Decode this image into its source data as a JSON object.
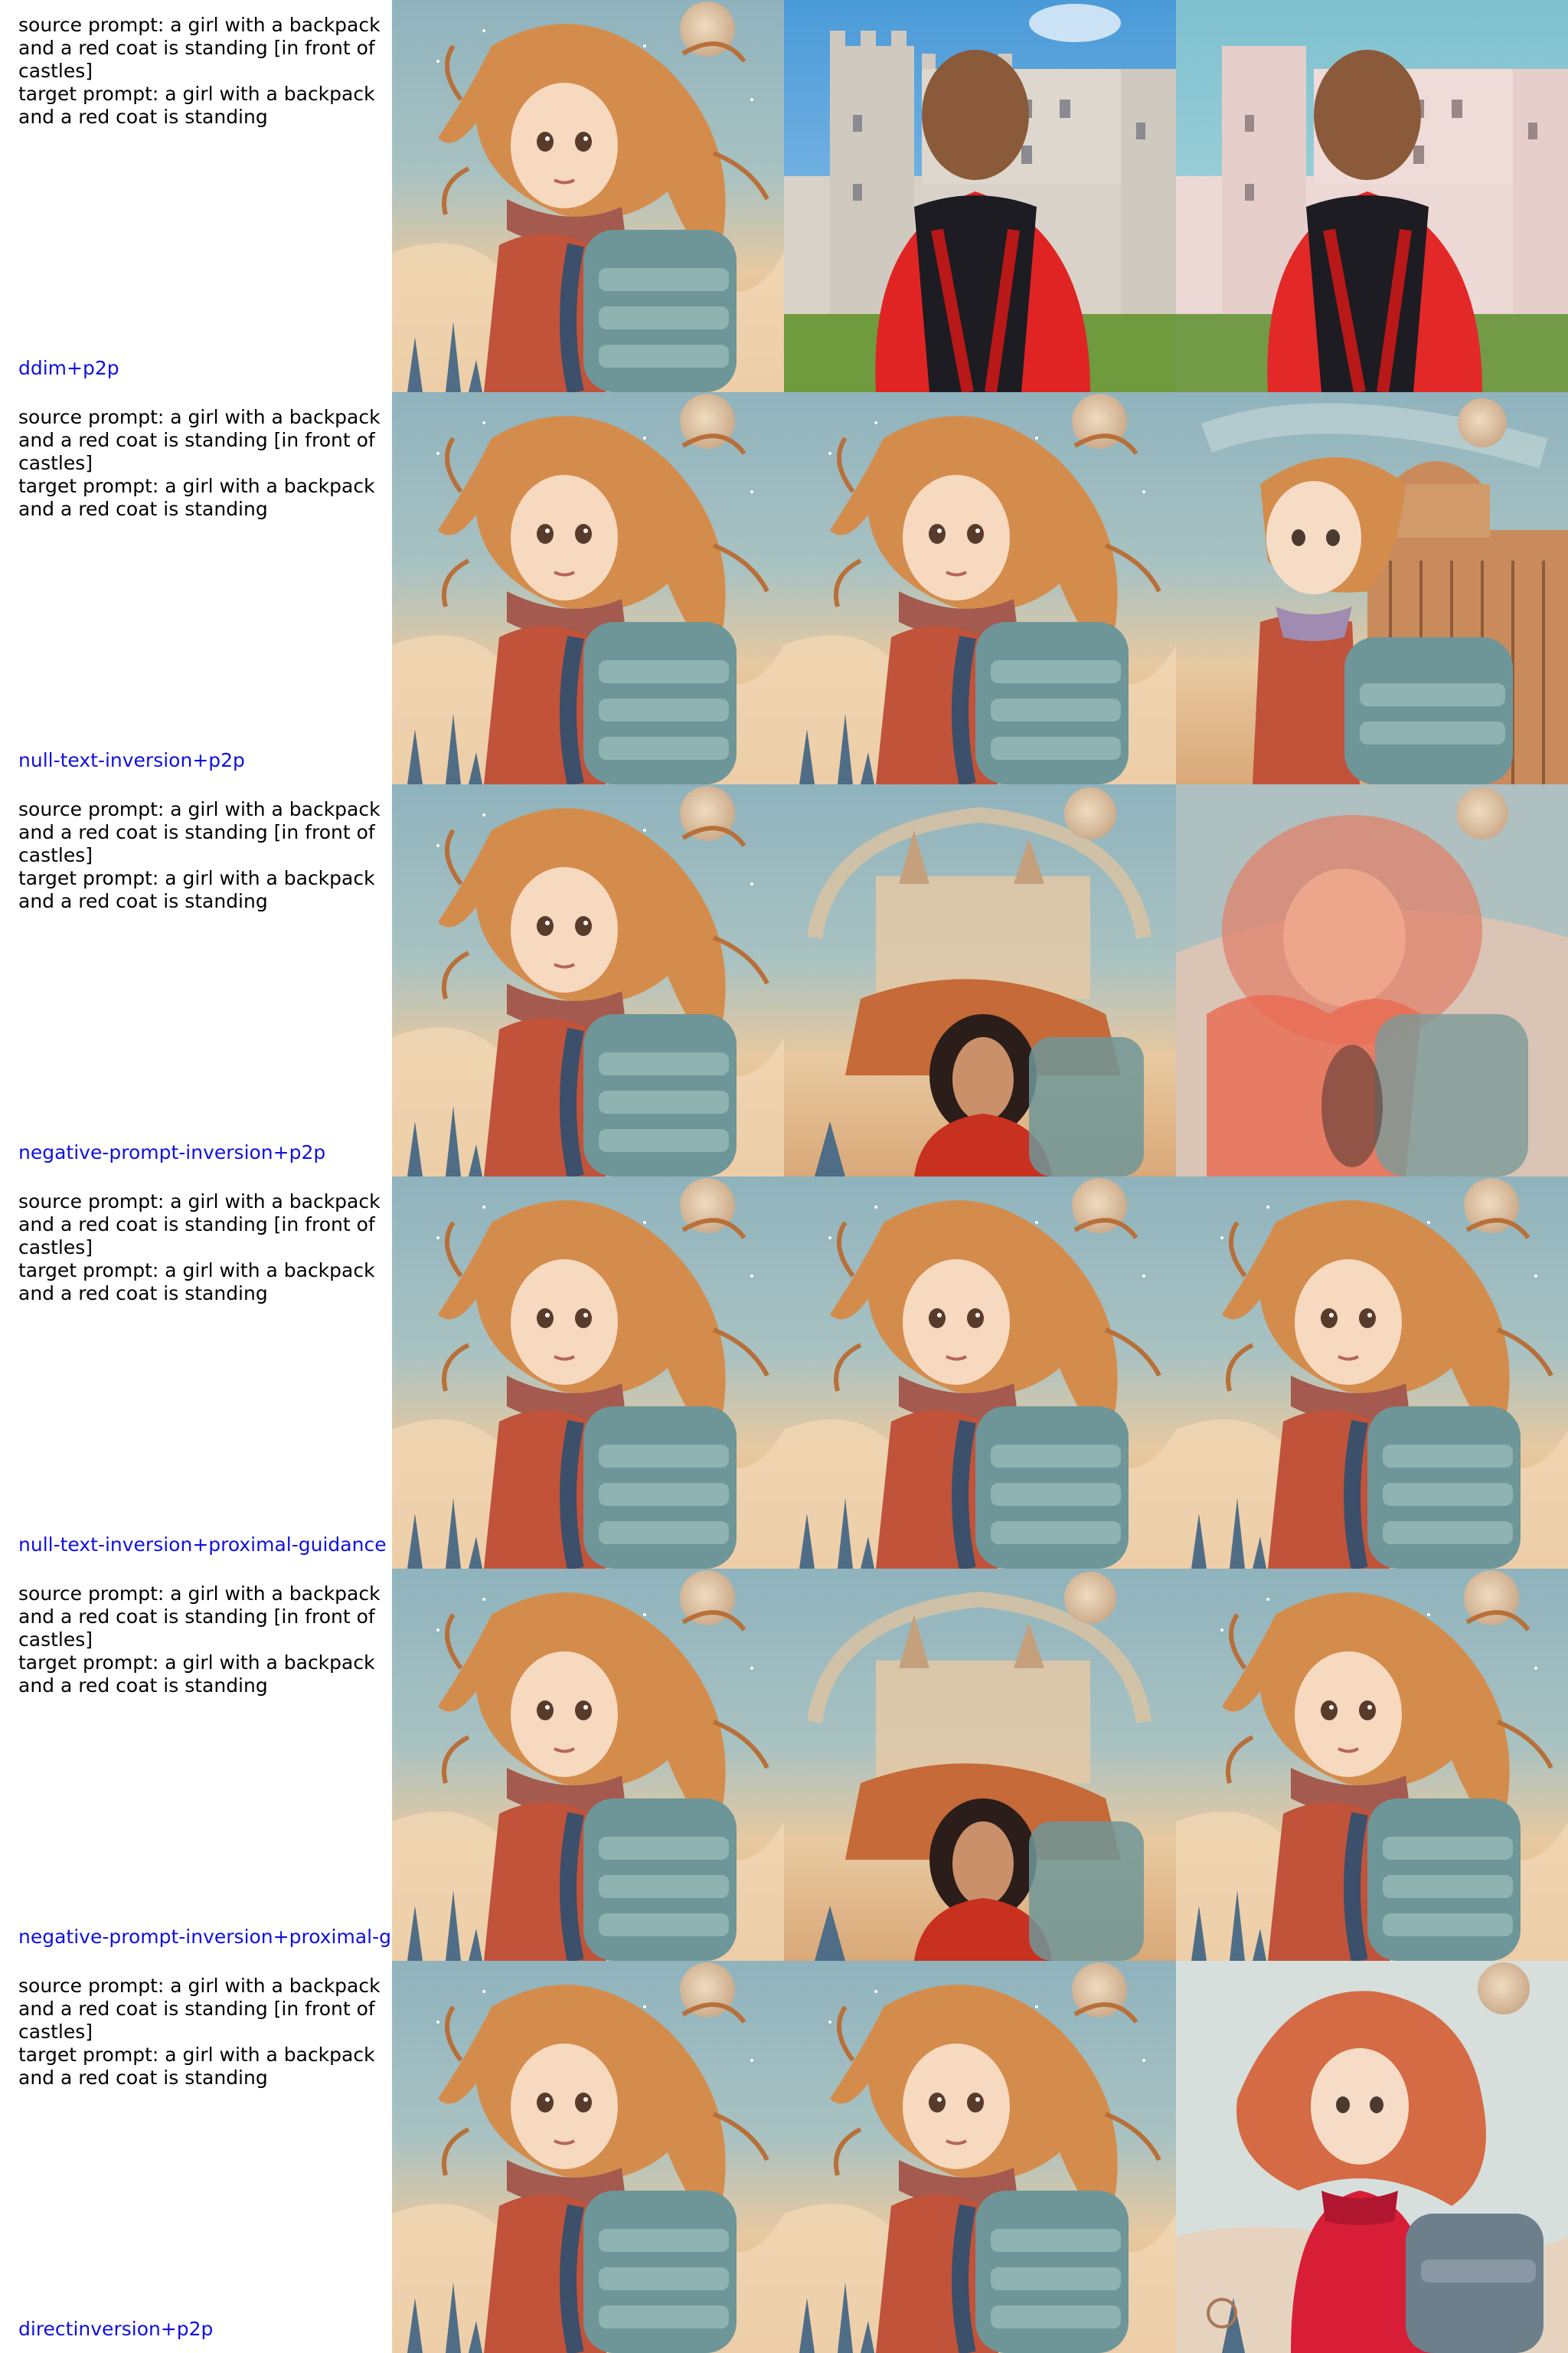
{
  "rows": [
    {
      "prompt": "source prompt: a girl with a backpack\nand a red coat is standing [in front of\ncastles]\ntarget prompt: a girl with a backpack\nand a red coat is standing",
      "method": "ddim+p2p",
      "images": [
        "illustrated girl with curly hair and backpack (source)",
        "photo of girl in red coat in front of castle",
        "photo of girl in red coat in front of castle"
      ]
    },
    {
      "prompt": "source prompt: a girl with a backpack\nand a red coat is standing [in front of\ncastles]\ntarget prompt: a girl with a backpack\nand a red coat is standing",
      "method": "null-text-inversion+p2p",
      "images": [
        "illustrated girl source",
        "illustrated girl reconstruction",
        "illustrated girl with building edit"
      ]
    },
    {
      "prompt": "source prompt: a girl with a backpack\nand a red coat is standing [in front of\ncastles]\ntarget prompt: a girl with a backpack\nand a red coat is standing",
      "method": "negative-prompt-inversion+p2p",
      "images": [
        "illustrated girl source",
        "blended castle and woman",
        "blurred red girl"
      ]
    },
    {
      "prompt": "source prompt: a girl with a backpack\nand a red coat is standing [in front of\ncastles]\ntarget prompt: a girl with a backpack\nand a red coat is standing",
      "method": "null-text-inversion+proximal-guidance",
      "images": [
        "illustrated girl source",
        "illustrated girl reconstruction",
        "illustrated girl edit"
      ]
    },
    {
      "prompt": "source prompt: a girl with a backpack\nand a red coat is standing [in front of\ncastles]\ntarget prompt: a girl with a backpack\nand a red coat is standing",
      "method": "negative-prompt-inversion+proximal-guidance",
      "images": [
        "illustrated girl source",
        "blended castle and woman",
        "illustrated girl edit"
      ]
    },
    {
      "prompt": "source prompt: a girl with a backpack\nand a red coat is standing [in front of\ncastles]\ntarget prompt: a girl with a backpack\nand a red coat is standing",
      "method": "directinversion+p2p",
      "images": [
        "illustrated girl source",
        "illustrated girl reconstruction",
        "illustrated girl in red coat edit"
      ]
    }
  ]
}
